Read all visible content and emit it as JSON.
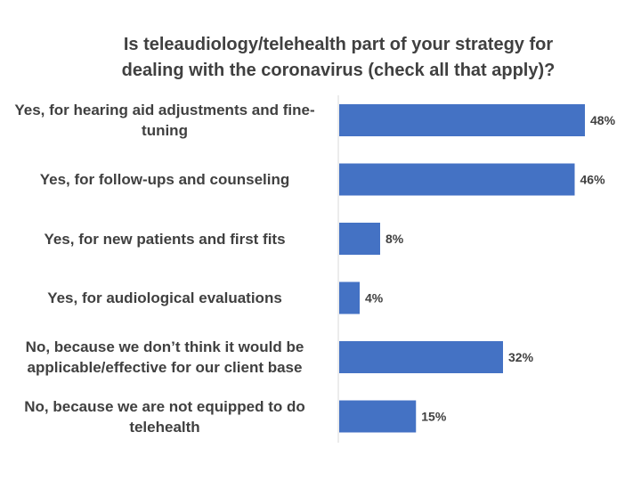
{
  "chart_data": {
    "type": "bar",
    "orientation": "horizontal",
    "title": "Is teleaudiology/telehealth part of your strategy for\ndealing with the coronavirus (check all that apply)?",
    "categories": [
      "Yes, for hearing aid adjustments and fine-tuning",
      "Yes, for follow-ups and counseling",
      "Yes, for new patients and first fits",
      "Yes, for audiological evaluations",
      "No, because we don’t think it would be applicable/effective for our client base",
      "No, because we are not equipped to do telehealth"
    ],
    "values": [
      48,
      46,
      8,
      4,
      32,
      15
    ],
    "value_labels": [
      "48%",
      "46%",
      "8%",
      "4%",
      "32%",
      "15%"
    ],
    "xlim": [
      0,
      50
    ],
    "bar_color": "#4472C4",
    "grid": false,
    "legend": "none"
  }
}
